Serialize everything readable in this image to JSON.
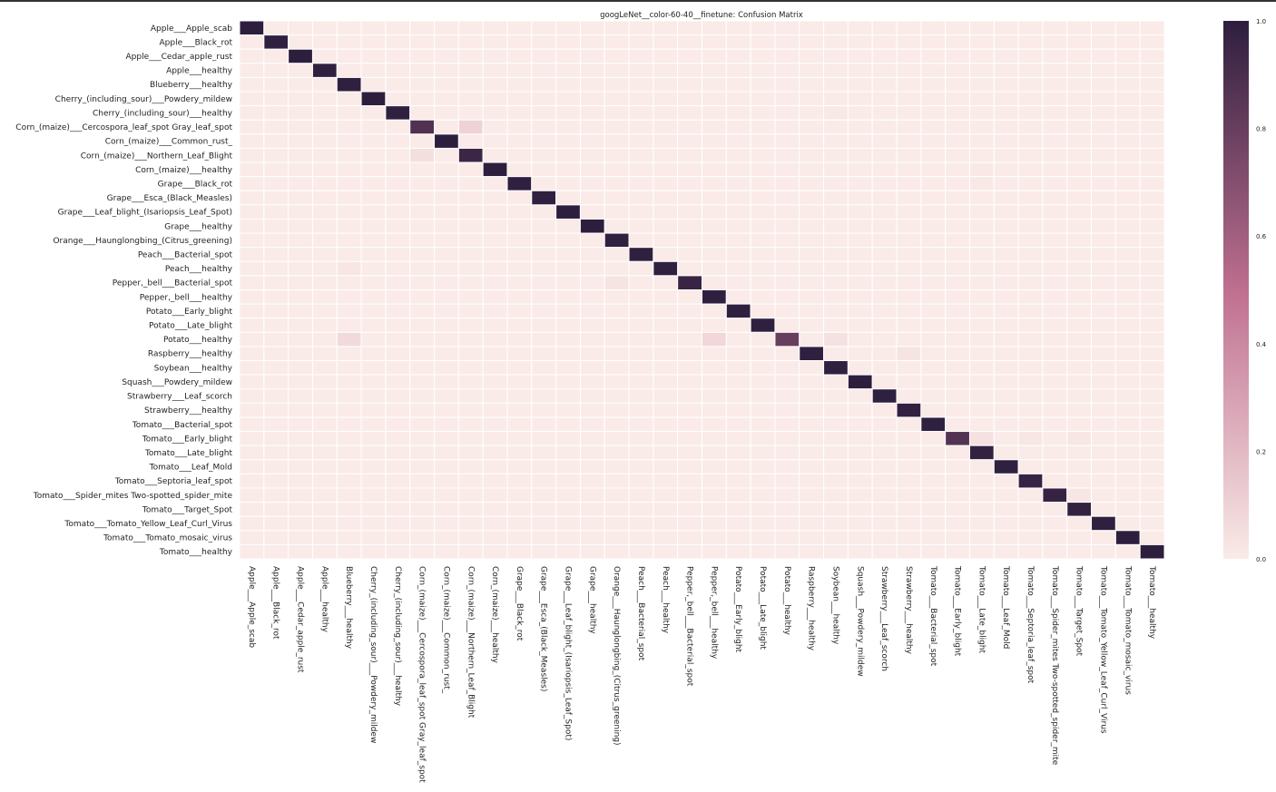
{
  "chart_data": {
    "type": "heatmap",
    "title": "googLeNet__color-60-40__finetune: Confusion Matrix",
    "xlabel": "",
    "ylabel": "",
    "labels": [
      "Apple___Apple_scab",
      "Apple___Black_rot",
      "Apple___Cedar_apple_rust",
      "Apple___healthy",
      "Blueberry___healthy",
      "Cherry_(including_sour)___Powdery_mildew",
      "Cherry_(including_sour)___healthy",
      "Corn_(maize)___Cercospora_leaf_spot Gray_leaf_spot",
      "Corn_(maize)___Common_rust_",
      "Corn_(maize)___Northern_Leaf_Blight",
      "Corn_(maize)___healthy",
      "Grape___Black_rot",
      "Grape___Esca_(Black_Measles)",
      "Grape___Leaf_blight_(Isariopsis_Leaf_Spot)",
      "Grape___healthy",
      "Orange___Haunglongbing_(Citrus_greening)",
      "Peach___Bacterial_spot",
      "Peach___healthy",
      "Pepper,_bell___Bacterial_spot",
      "Pepper,_bell___healthy",
      "Potato___Early_blight",
      "Potato___Late_blight",
      "Potato___healthy",
      "Raspberry___healthy",
      "Soybean___healthy",
      "Squash___Powdery_mildew",
      "Strawberry___Leaf_scorch",
      "Strawberry___healthy",
      "Tomato___Bacterial_spot",
      "Tomato___Early_blight",
      "Tomato___Late_blight",
      "Tomato___Leaf_Mold",
      "Tomato___Septoria_leaf_spot",
      "Tomato___Spider_mites Two-spotted_spider_mite",
      "Tomato___Target_Spot",
      "Tomato___Tomato_Yellow_Leaf_Curl_Virus",
      "Tomato___Tomato_mosaic_virus",
      "Tomato___healthy"
    ],
    "diagonal": [
      1.0,
      0.99,
      1.0,
      0.99,
      0.99,
      1.0,
      0.99,
      0.88,
      1.0,
      0.95,
      1.0,
      0.99,
      0.99,
      1.0,
      1.0,
      0.99,
      0.99,
      0.99,
      0.96,
      0.99,
      0.99,
      0.99,
      0.8,
      0.99,
      0.99,
      1.0,
      0.99,
      0.98,
      0.99,
      0.87,
      0.98,
      0.99,
      0.97,
      0.97,
      0.98,
      0.99,
      1.0,
      1.0
    ],
    "off_diagonal": [
      {
        "row": 7,
        "col": 9,
        "value": 0.1
      },
      {
        "row": 9,
        "col": 7,
        "value": 0.05
      },
      {
        "row": 22,
        "col": 4,
        "value": 0.07
      },
      {
        "row": 22,
        "col": 19,
        "value": 0.08
      },
      {
        "row": 22,
        "col": 24,
        "value": 0.04
      },
      {
        "row": 18,
        "col": 15,
        "value": 0.03
      },
      {
        "row": 17,
        "col": 4,
        "value": 0.02
      },
      {
        "row": 23,
        "col": 27,
        "value": 0.03
      },
      {
        "row": 29,
        "col": 30,
        "value": 0.04
      },
      {
        "row": 29,
        "col": 32,
        "value": 0.02
      },
      {
        "row": 29,
        "col": 34,
        "value": 0.02
      },
      {
        "row": 33,
        "col": 34,
        "value": 0.02
      },
      {
        "row": 6,
        "col": 24,
        "value": 0.01
      },
      {
        "row": 10,
        "col": 30,
        "value": 0.01
      },
      {
        "row": 11,
        "col": 30,
        "value": 0.01
      }
    ],
    "colorbar": {
      "ticks": [
        "0.0",
        "0.2",
        "0.4",
        "0.6",
        "0.8",
        "1.0"
      ],
      "min": 0.0,
      "max": 1.0,
      "low_color": "#faebe8",
      "mid_color": "#bf6f8f",
      "high_color": "#2d1e3e"
    },
    "grid": true
  }
}
